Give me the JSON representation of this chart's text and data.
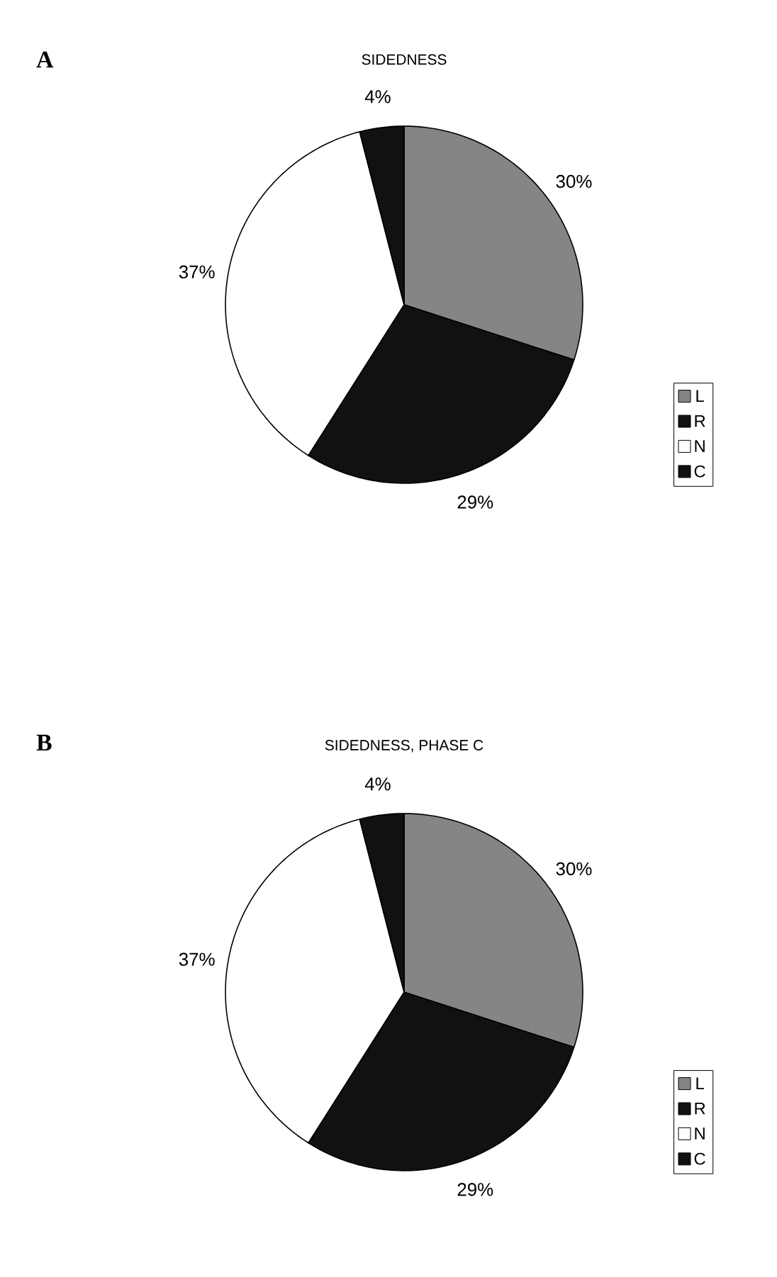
{
  "chart_data": [
    {
      "type": "pie",
      "title": "SIDEDNESS",
      "annotations": [
        "A"
      ],
      "categories": [
        "L",
        "R",
        "N",
        "C"
      ],
      "values": [
        30,
        29,
        37,
        4
      ],
      "colors": [
        "#858585",
        "#111111",
        "#ffffff",
        "#111111"
      ],
      "value_labels": [
        "30%",
        "29%",
        "37%",
        "4%"
      ],
      "legend": "right"
    },
    {
      "type": "pie",
      "title": "SIDEDNESS, PHASE C",
      "annotations": [
        "B"
      ],
      "categories": [
        "L",
        "R",
        "N",
        "C"
      ],
      "values": [
        30,
        29,
        37,
        4
      ],
      "colors": [
        "#858585",
        "#111111",
        "#ffffff",
        "#111111"
      ],
      "value_labels": [
        "30%",
        "29%",
        "37%",
        "4%"
      ],
      "legend": "right"
    }
  ]
}
